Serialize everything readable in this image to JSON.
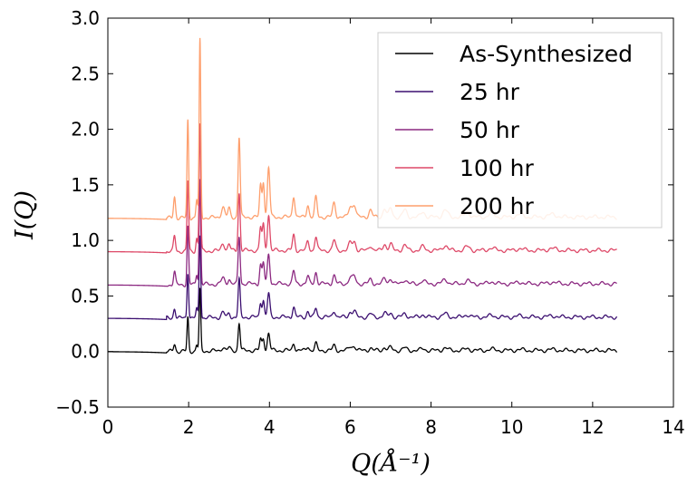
{
  "chart_data": {
    "type": "line",
    "title": "",
    "xlabel": "Q(Å⁻¹)",
    "ylabel": "I(Q)",
    "xlim": [
      0,
      14
    ],
    "ylim": [
      -0.5,
      3.0
    ],
    "xticks": [
      "0",
      "2",
      "4",
      "6",
      "8",
      "10",
      "12",
      "14"
    ],
    "yticks": [
      "−0.5",
      "0.0",
      "0.5",
      "1.0",
      "1.5",
      "2.0",
      "2.5",
      "3.0"
    ],
    "grid": false,
    "legend_position": "top-right",
    "x_range": [
      0,
      12.6
    ],
    "series": [
      {
        "name": "As-Synthesized",
        "color": "#000000",
        "offset": 0.0,
        "scale": 0.55
      },
      {
        "name": "25 hr",
        "color": "#3b0f70",
        "offset": 0.3,
        "scale": 0.75
      },
      {
        "name": "50 hr",
        "color": "#8c2981",
        "offset": 0.6,
        "scale": 0.95
      },
      {
        "name": "100 hr",
        "color": "#de4968",
        "offset": 0.9,
        "scale": 1.15
      },
      {
        "name": "200 hr",
        "color": "#fe9f6d",
        "offset": 1.2,
        "scale": 1.6
      }
    ],
    "peaks": [
      {
        "q": 1.65,
        "h": 0.12,
        "w": 0.025
      },
      {
        "q": 1.98,
        "h": 0.55,
        "w": 0.02
      },
      {
        "q": 2.28,
        "h": 1.0,
        "w": 0.02
      },
      {
        "q": 2.2,
        "h": 0.1,
        "w": 0.02
      },
      {
        "q": 2.85,
        "h": 0.06,
        "w": 0.04
      },
      {
        "q": 3.0,
        "h": 0.05,
        "w": 0.03
      },
      {
        "q": 3.25,
        "h": 0.45,
        "w": 0.025
      },
      {
        "q": 3.78,
        "h": 0.18,
        "w": 0.025
      },
      {
        "q": 3.85,
        "h": 0.2,
        "w": 0.025
      },
      {
        "q": 3.98,
        "h": 0.28,
        "w": 0.03
      },
      {
        "q": 4.6,
        "h": 0.12,
        "w": 0.03
      },
      {
        "q": 4.95,
        "h": 0.07,
        "w": 0.03
      },
      {
        "q": 5.15,
        "h": 0.11,
        "w": 0.03
      },
      {
        "q": 5.6,
        "h": 0.08,
        "w": 0.035
      },
      {
        "q": 6.0,
        "h": 0.06,
        "w": 0.04
      },
      {
        "q": 6.1,
        "h": 0.07,
        "w": 0.04
      },
      {
        "q": 6.5,
        "h": 0.04,
        "w": 0.04
      },
      {
        "q": 6.85,
        "h": 0.05,
        "w": 0.04
      },
      {
        "q": 7.0,
        "h": 0.05,
        "w": 0.04
      },
      {
        "q": 7.35,
        "h": 0.04,
        "w": 0.05
      },
      {
        "q": 7.8,
        "h": 0.03,
        "w": 0.05
      },
      {
        "q": 8.35,
        "h": 0.04,
        "w": 0.06
      },
      {
        "q": 8.9,
        "h": 0.03,
        "w": 0.06
      },
      {
        "q": 9.5,
        "h": 0.02,
        "w": 0.07
      },
      {
        "q": 10.2,
        "h": 0.015,
        "w": 0.08
      },
      {
        "q": 11.0,
        "h": 0.015,
        "w": 0.1
      }
    ]
  }
}
